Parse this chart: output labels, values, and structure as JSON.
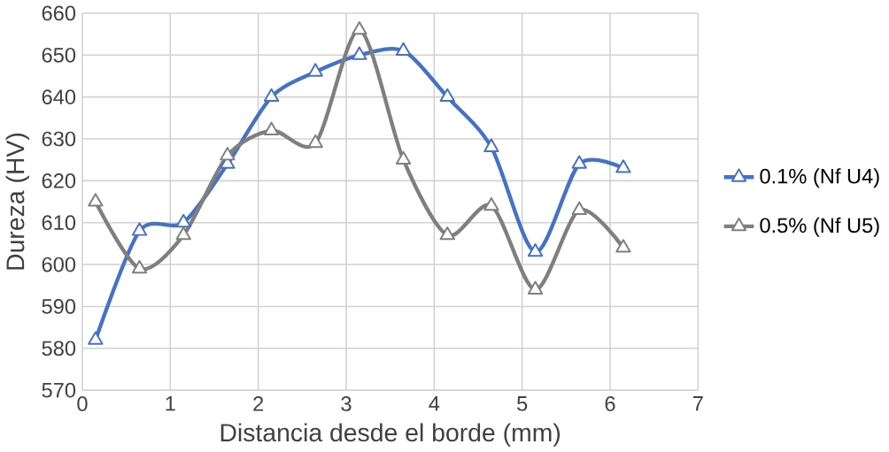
{
  "chart_data": {
    "type": "line",
    "xlabel": "Distancia desde el borde (mm)",
    "ylabel": "Dureza (HV)",
    "x": [
      0.15,
      0.65,
      1.15,
      1.65,
      2.15,
      2.65,
      3.15,
      3.65,
      4.15,
      4.65,
      5.15,
      5.65,
      6.15
    ],
    "series": [
      {
        "name": "0.1% (Nf U4)",
        "color": "#4472c4",
        "values": [
          582,
          608,
          610,
          624,
          640,
          646,
          650,
          651,
          640,
          628,
          603,
          624,
          623
        ]
      },
      {
        "name": "0.5% (Nf U5)",
        "color": "#7f7f7f",
        "values": [
          615,
          599,
          607,
          626,
          632,
          629,
          656,
          625,
          607,
          614,
          594,
          613,
          604
        ]
      }
    ],
    "xlim": [
      0,
      7
    ],
    "xticks": [
      0,
      1,
      2,
      3,
      4,
      5,
      6,
      7
    ],
    "ylim": [
      570,
      660
    ],
    "yticks": [
      570,
      580,
      590,
      600,
      610,
      620,
      630,
      640,
      650,
      660
    ],
    "grid": true,
    "legend": "right",
    "marker": "triangle",
    "line_style": "solid"
  }
}
